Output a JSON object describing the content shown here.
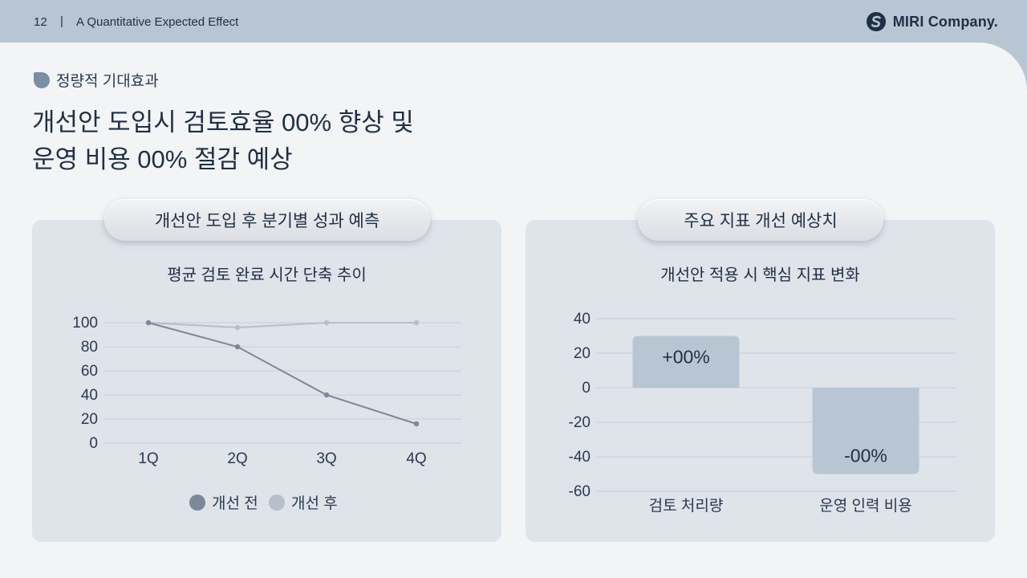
{
  "header": {
    "page_number": "12",
    "separator": "|",
    "section": "A Quantitative Expected Effect",
    "brand": "MIRI Company."
  },
  "kicker": "정량적 기대효과",
  "headline": {
    "line1": "개선안 도입시 검토효율 00% 향상 및",
    "line2": "운영 비용 00% 절감 예상"
  },
  "left_panel": {
    "pill_label": "개선안 도입 후 분기별 성과 예측",
    "subtitle": "평균 검토 완료 시간 단축 추이"
  },
  "right_panel": {
    "pill_label": "주요 지표 개선 예상치",
    "subtitle": "개선안 적용 시 핵심 지표 변화"
  },
  "colors": {
    "before": "#7b8898",
    "after": "#b7bfca",
    "bar": "#b8c6d3"
  },
  "chart_data": [
    {
      "type": "line",
      "title": "평균 검토 완료 시간 단축 추이",
      "categories": [
        "1Q",
        "2Q",
        "3Q",
        "4Q"
      ],
      "series": [
        {
          "name": "개선 전",
          "values": [
            100,
            80,
            40,
            16
          ]
        },
        {
          "name": "개선 후",
          "values": [
            100,
            96,
            100,
            100
          ]
        }
      ],
      "ylim": [
        0,
        100
      ],
      "yticks": [
        0,
        20,
        40,
        60,
        80,
        100
      ],
      "grid": true,
      "legend": "bottom"
    },
    {
      "type": "bar",
      "title": "개선안 적용 시 핵심 지표 변화",
      "categories": [
        "검토 처리량",
        "운영 인력 비용"
      ],
      "values": [
        30,
        -50
      ],
      "data_labels": [
        "+00%",
        "-00%"
      ],
      "ylim": [
        -60,
        40
      ],
      "yticks": [
        -60,
        -40,
        -20,
        0,
        20,
        40
      ],
      "grid": true
    }
  ]
}
